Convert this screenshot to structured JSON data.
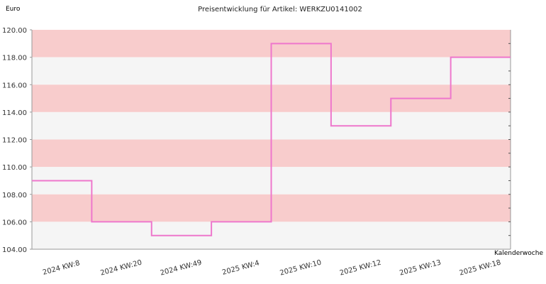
{
  "chart_data": {
    "type": "line",
    "step": true,
    "title": "Preisentwicklung für Artikel: WERKZU0141002",
    "ylabel": "Euro",
    "xlabel": "Kalenderwoche",
    "ylim": [
      104,
      120
    ],
    "yticks": [
      "104.00",
      "106.00",
      "108.00",
      "110.00",
      "112.00",
      "114.00",
      "116.00",
      "118.00",
      "120.00"
    ],
    "categories": [
      "2024 KW:8",
      "2024 KW:20",
      "2024 KW:49",
      "2025 KW:4",
      "2025 KW:10",
      "2025 KW:12",
      "2025 KW:13",
      "2025 KW:18"
    ],
    "series": [
      {
        "values": [
          109,
          106,
          105,
          106,
          119,
          113,
          115,
          118
        ]
      }
    ],
    "grid": true,
    "band_colors": [
      "#f8cccc",
      "#f5f5f5"
    ],
    "line_color": "#ee77cc"
  }
}
